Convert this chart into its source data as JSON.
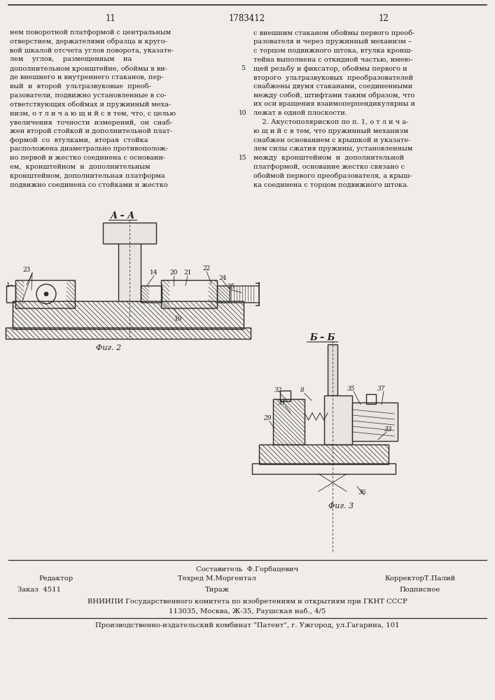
{
  "page_number_left": "11",
  "patent_number": "1783412",
  "page_number_right": "12",
  "background_color": "#f0ede8",
  "text_color": "#1a1a1a",
  "line_color": "#2a2a2a",
  "column_left_lines": [
    "нем поворотной платформой с центральным",
    "отверстием, держателями образца и круго-",
    "вой шкалой отсчета углов поворота, указате-",
    "лем    углов,    размещенным    на",
    "дополнительном кронштейне, обоймы в ви-",
    "де внешнего и внутреннего стаканов, пер-",
    "вый  и  второй  ультразвуковые  преоб-",
    "разователи, подвижно установленные в со-",
    "ответствующих обоймах и пружинный меха-",
    "низм, о т л и ч а ю щ и й с я тем, что, с целью",
    "увеличения  точности  измерений,  он  снаб-",
    "жен второй стойкой и дополнительной плат-",
    "формой  со  втулками,  вторая  стойка",
    "расположена диаметрально противополож-",
    "но первой и жестко соединена с основани-",
    "ем,  кронштейном  и  дополнительным",
    "кронштейном, дополнительная платформа",
    "подвижно соединена со стойками и жестко"
  ],
  "column_right_lines": [
    "с внешним стаканом обоймы первого преоб-",
    "разователя и через пружинный механизм –",
    "с торцом подвижного штока, втулка кронш-",
    "тейна выполнена с откидной частью, имею-",
    "щей резьбу и фиксатор, обоймы первого и",
    "второго  ультразвуковых  преобразователей",
    "снабжены двумя стаканами, соединенными",
    "между собой, штифтами таким образом, что",
    "их оси вращения взаимоперпендикулярны и",
    "лежат в одной плоскости.",
    "    2. Акустополярископ по п. 1, о т л и ч а-",
    "ю щ и й с я тем, что пружинный механизм",
    "снабжен основанием с крышкой и указате-",
    "лем силы сжатия пружины, установленным",
    "между  кронштейном  и  дополнительной",
    "платформой, основание жестко связано с",
    "обоймой первого преобразователя, а крыш-",
    "ка соединена с торцом подвижного штока."
  ],
  "line_nums": {
    "3": "5",
    "8": "10",
    "13": "15"
  },
  "fig2_title": "А – А",
  "fig2_caption": "Фиг. 2",
  "fig3_title": "Б – Б",
  "fig3_caption": "Фиг. 3",
  "footer_composer": "Составитель  Ф.Горбацевич",
  "footer_editor": "Редактор",
  "footer_techred": "Техред М.Моргентал",
  "footer_corrector": "КорректорТ.Палий",
  "footer_order": "Заказ  4511",
  "footer_tirazh": "Тираж",
  "footer_podpisnoe": "Подписное",
  "footer_vniiipi": "ВНИИПИ Государственного комитета по изобретениям и открытиям при ГКНТ СССР",
  "footer_address": "113035, Москва, Ж-35, Раушская наб., 4/5",
  "footer_production": "Производственно-издательский комбинат \"Патент\", г. Ужгород, ул.Гагарина, 101"
}
